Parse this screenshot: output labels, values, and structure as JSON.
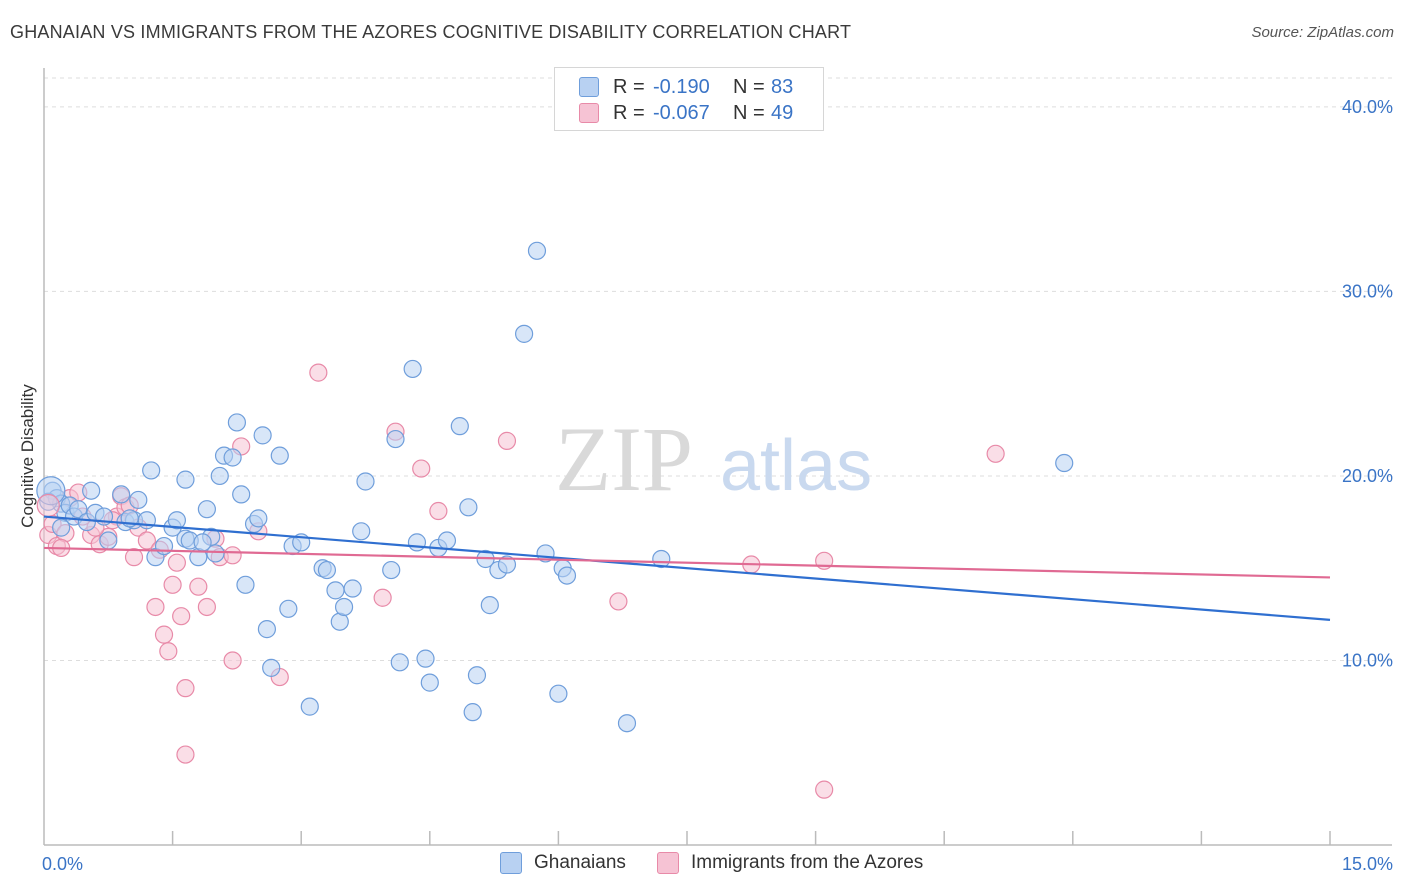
{
  "title": "GHANAIAN VS IMMIGRANTS FROM THE AZORES COGNITIVE DISABILITY CORRELATION CHART",
  "source": "Source: ZipAtlas.com",
  "legend": {
    "row1": {
      "r_label": "R =",
      "r_value": "-0.190",
      "n_label": "N =",
      "n_value": "83"
    },
    "row2": {
      "r_label": "R =",
      "r_value": "-0.067",
      "n_label": "N =",
      "n_value": "49"
    }
  },
  "watermark": {
    "zip": "ZIP",
    "atlas": "atlas"
  },
  "colors": {
    "blue_fill": "#b8d1f2",
    "blue_stroke": "#6f9edb",
    "blue_line": "#2f6fd0",
    "pink_fill": "#f6c3d4",
    "pink_stroke": "#e88aa8",
    "pink_line": "#e06a93",
    "axis_text": "#3a74c6",
    "grid": "#dddddd"
  },
  "chart_data": {
    "type": "scatter",
    "title": "GHANAIAN VS IMMIGRANTS FROM THE AZORES COGNITIVE DISABILITY CORRELATION CHART",
    "xlabel": "",
    "ylabel": "Cognitive Disability",
    "xlim": [
      0,
      15
    ],
    "ylim": [
      0,
      42
    ],
    "x_tick_labels": [
      "0.0%",
      "15.0%"
    ],
    "y_ticks": [
      10,
      20,
      30,
      40
    ],
    "y_tick_labels": [
      "10.0%",
      "20.0%",
      "30.0%",
      "40.0%"
    ],
    "grid": true,
    "legend_position": "bottom",
    "series": [
      {
        "name": "Ghanaians",
        "r": -0.19,
        "n": 83,
        "trend": {
          "x": [
            0,
            15
          ],
          "y": [
            17.8,
            12.2
          ]
        },
        "points": [
          [
            0.1,
            19.2
          ],
          [
            0.15,
            18.8
          ],
          [
            0.2,
            18.5
          ],
          [
            0.25,
            18.0
          ],
          [
            0.3,
            18.4
          ],
          [
            0.35,
            17.8
          ],
          [
            0.4,
            18.2
          ],
          [
            0.5,
            17.5
          ],
          [
            0.55,
            19.2
          ],
          [
            0.6,
            18.0
          ],
          [
            0.7,
            17.8
          ],
          [
            0.75,
            16.5
          ],
          [
            0.9,
            19.0
          ],
          [
            0.95,
            17.5
          ],
          [
            1.05,
            17.6
          ],
          [
            1.1,
            18.7
          ],
          [
            1.2,
            17.6
          ],
          [
            1.25,
            20.3
          ],
          [
            1.3,
            15.6
          ],
          [
            1.4,
            16.2
          ],
          [
            1.5,
            17.2
          ],
          [
            1.55,
            17.6
          ],
          [
            1.65,
            16.6
          ],
          [
            1.7,
            16.5
          ],
          [
            1.65,
            19.8
          ],
          [
            1.8,
            15.6
          ],
          [
            1.9,
            18.2
          ],
          [
            1.95,
            16.7
          ],
          [
            2.0,
            15.8
          ],
          [
            2.05,
            20.0
          ],
          [
            2.1,
            21.1
          ],
          [
            2.2,
            21.0
          ],
          [
            2.25,
            22.9
          ],
          [
            2.3,
            19.0
          ],
          [
            2.35,
            14.1
          ],
          [
            2.45,
            17.4
          ],
          [
            2.5,
            17.7
          ],
          [
            2.55,
            22.2
          ],
          [
            2.6,
            11.7
          ],
          [
            2.65,
            9.6
          ],
          [
            2.75,
            21.1
          ],
          [
            2.85,
            12.8
          ],
          [
            2.9,
            16.2
          ],
          [
            3.0,
            16.4
          ],
          [
            3.1,
            7.5
          ],
          [
            3.25,
            15.0
          ],
          [
            3.3,
            14.9
          ],
          [
            3.4,
            13.8
          ],
          [
            3.45,
            12.1
          ],
          [
            3.5,
            12.9
          ],
          [
            3.6,
            13.9
          ],
          [
            3.7,
            17.0
          ],
          [
            3.75,
            19.7
          ],
          [
            4.05,
            14.9
          ],
          [
            4.1,
            22.0
          ],
          [
            4.15,
            9.9
          ],
          [
            4.3,
            25.8
          ],
          [
            4.35,
            16.4
          ],
          [
            4.45,
            10.1
          ],
          [
            4.5,
            8.8
          ],
          [
            4.6,
            16.1
          ],
          [
            4.7,
            16.5
          ],
          [
            4.85,
            22.7
          ],
          [
            4.95,
            18.3
          ],
          [
            5.0,
            7.2
          ],
          [
            5.05,
            9.2
          ],
          [
            5.15,
            15.5
          ],
          [
            5.2,
            13.0
          ],
          [
            5.3,
            14.9
          ],
          [
            5.4,
            15.2
          ],
          [
            5.6,
            27.7
          ],
          [
            5.75,
            32.2
          ],
          [
            5.85,
            15.8
          ],
          [
            6.0,
            8.2
          ],
          [
            6.05,
            15.0
          ],
          [
            6.1,
            14.6
          ],
          [
            6.8,
            6.6
          ],
          [
            7.2,
            15.5
          ],
          [
            11.9,
            20.7
          ],
          [
            0.05,
            18.6
          ],
          [
            0.2,
            17.2
          ],
          [
            1.0,
            17.7
          ],
          [
            1.85,
            16.4
          ]
        ]
      },
      {
        "name": "Immigrants from the Azores",
        "r": -0.067,
        "n": 49,
        "trend": {
          "x": [
            0,
            15
          ],
          "y": [
            16.1,
            14.5
          ]
        },
        "points": [
          [
            0.05,
            16.8
          ],
          [
            0.1,
            17.4
          ],
          [
            0.15,
            16.2
          ],
          [
            0.25,
            16.9
          ],
          [
            0.3,
            18.8
          ],
          [
            0.4,
            19.1
          ],
          [
            0.45,
            17.8
          ],
          [
            0.55,
            16.8
          ],
          [
            0.65,
            16.3
          ],
          [
            0.75,
            16.7
          ],
          [
            0.85,
            17.8
          ],
          [
            0.9,
            18.9
          ],
          [
            0.95,
            18.3
          ],
          [
            1.05,
            15.6
          ],
          [
            1.1,
            17.2
          ],
          [
            1.2,
            16.5
          ],
          [
            1.3,
            12.9
          ],
          [
            1.35,
            16.0
          ],
          [
            1.4,
            11.4
          ],
          [
            1.45,
            10.5
          ],
          [
            1.5,
            14.1
          ],
          [
            1.55,
            15.3
          ],
          [
            1.6,
            12.4
          ],
          [
            1.65,
            8.5
          ],
          [
            1.65,
            4.9
          ],
          [
            1.8,
            14.0
          ],
          [
            1.9,
            12.9
          ],
          [
            2.0,
            16.6
          ],
          [
            2.05,
            15.6
          ],
          [
            2.2,
            10.0
          ],
          [
            2.3,
            21.6
          ],
          [
            2.5,
            17.0
          ],
          [
            2.75,
            9.1
          ],
          [
            3.2,
            25.6
          ],
          [
            3.95,
            13.4
          ],
          [
            4.1,
            22.4
          ],
          [
            4.4,
            20.4
          ],
          [
            4.6,
            18.1
          ],
          [
            5.4,
            21.9
          ],
          [
            6.7,
            13.2
          ],
          [
            8.25,
            15.2
          ],
          [
            9.1,
            15.4
          ],
          [
            9.1,
            3.0
          ],
          [
            11.1,
            21.2
          ],
          [
            0.2,
            16.1
          ],
          [
            0.6,
            17.2
          ],
          [
            0.8,
            17.6
          ],
          [
            1.0,
            18.4
          ],
          [
            2.2,
            15.7
          ]
        ]
      }
    ]
  },
  "bottom_legend": {
    "item1": "Ghanaians",
    "item2": "Immigrants from the Azores"
  }
}
